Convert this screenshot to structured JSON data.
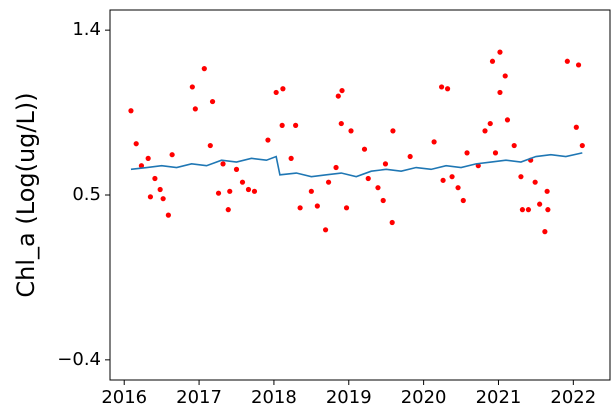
{
  "chart_data": {
    "type": "scatter",
    "ylabel": "Chl_a (Log(ug/L))",
    "xlim": [
      2015.81,
      2022.49
    ],
    "ylim": [
      -0.51,
      1.51
    ],
    "xticks": [
      2016,
      2017,
      2018,
      2019,
      2020,
      2021,
      2022
    ],
    "yticks": [
      {
        "value": -0.4,
        "label": "−0.4"
      },
      0.5,
      1.4
    ],
    "series": [
      {
        "type": "scatter",
        "color": "#ff0000",
        "x": [
          2016.09,
          2016.16,
          2016.23,
          2016.32,
          2016.35,
          2016.41,
          2016.48,
          2016.52,
          2016.59,
          2016.64,
          2016.91,
          2016.95,
          2017.07,
          2017.18,
          2017.15,
          2017.26,
          2017.32,
          2017.39,
          2017.41,
          2017.5,
          2017.58,
          2017.66,
          2017.74,
          2017.92,
          2018.03,
          2018.12,
          2018.11,
          2018.23,
          2018.29,
          2018.35,
          2018.5,
          2018.58,
          2018.69,
          2018.73,
          2018.83,
          2018.86,
          2018.91,
          2018.9,
          2018.97,
          2019.03,
          2019.21,
          2019.26,
          2019.39,
          2019.46,
          2019.49,
          2019.58,
          2019.59,
          2019.82,
          2020.14,
          2020.24,
          2020.32,
          2020.26,
          2020.38,
          2020.46,
          2020.53,
          2020.58,
          2020.73,
          2020.82,
          2020.89,
          2020.92,
          2020.96,
          2021.02,
          2021.02,
          2021.09,
          2021.12,
          2021.21,
          2021.3,
          2021.32,
          2021.4,
          2021.43,
          2021.49,
          2021.55,
          2021.62,
          2021.65,
          2021.66,
          2021.92,
          2022.04,
          2022.07,
          2022.12
        ],
        "values": [
          0.96,
          0.78,
          0.66,
          0.7,
          0.49,
          0.59,
          0.53,
          0.48,
          0.39,
          0.72,
          1.09,
          0.97,
          1.19,
          1.01,
          0.77,
          0.51,
          0.67,
          0.42,
          0.52,
          0.64,
          0.57,
          0.53,
          0.52,
          0.8,
          1.06,
          1.08,
          0.88,
          0.7,
          0.88,
          0.43,
          0.52,
          0.44,
          0.31,
          0.57,
          0.65,
          1.04,
          1.07,
          0.89,
          0.43,
          0.85,
          0.75,
          0.59,
          0.54,
          0.47,
          0.67,
          0.35,
          0.85,
          0.71,
          0.79,
          1.09,
          1.08,
          0.58,
          0.6,
          0.54,
          0.47,
          0.73,
          0.66,
          0.85,
          0.89,
          1.23,
          0.73,
          1.28,
          1.06,
          1.15,
          0.91,
          0.77,
          0.6,
          0.42,
          0.42,
          0.69,
          0.57,
          0.45,
          0.3,
          0.52,
          0.42,
          1.23,
          0.87,
          1.21,
          0.77
        ]
      },
      {
        "type": "line",
        "color": "#1f77b4",
        "x": [
          2016.09,
          2016.3,
          2016.5,
          2016.7,
          2016.9,
          2017.1,
          2017.3,
          2017.5,
          2017.7,
          2017.9,
          2018.03,
          2018.08,
          2018.3,
          2018.5,
          2018.7,
          2018.9,
          2019.1,
          2019.3,
          2019.5,
          2019.7,
          2019.9,
          2020.1,
          2020.3,
          2020.5,
          2020.7,
          2020.9,
          2021.1,
          2021.3,
          2021.5,
          2021.7,
          2021.9,
          2022.12
        ],
        "values": [
          0.64,
          0.65,
          0.66,
          0.65,
          0.67,
          0.66,
          0.69,
          0.68,
          0.7,
          0.69,
          0.71,
          0.61,
          0.62,
          0.6,
          0.61,
          0.62,
          0.6,
          0.63,
          0.64,
          0.63,
          0.65,
          0.64,
          0.66,
          0.65,
          0.67,
          0.68,
          0.69,
          0.68,
          0.71,
          0.72,
          0.71,
          0.73
        ]
      }
    ]
  }
}
